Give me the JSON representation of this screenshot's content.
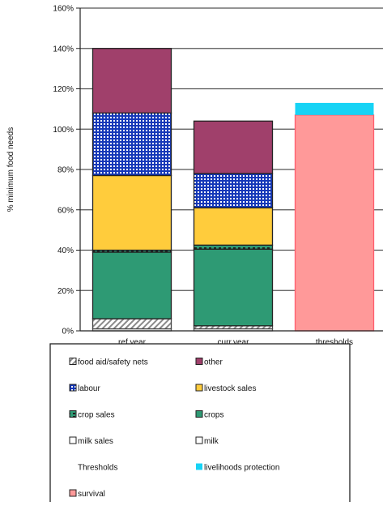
{
  "chart_data": {
    "type": "bar",
    "stacked": true,
    "ylabel": "% minimum food needs",
    "y_unit": "%",
    "ylim": [
      0,
      160
    ],
    "y_ticks": [
      0,
      20,
      40,
      60,
      80,
      100,
      120,
      140,
      160
    ],
    "grid": true,
    "categories": [
      "ref.year",
      "curr.year",
      "thresholds"
    ],
    "series": [
      {
        "name": "survival",
        "values": [
          0,
          0,
          107
        ],
        "color": "#ff9999",
        "stroke": "#ff5d6d",
        "pattern": "none"
      },
      {
        "name": "livelihoods protection",
        "values": [
          0,
          0,
          6
        ],
        "color": "#17d3f5",
        "stroke": "none",
        "pattern": "none"
      },
      {
        "name": "milk sales",
        "values": [
          1,
          1,
          0
        ],
        "color": "#ffffff",
        "stroke": "#555555",
        "pattern": "none"
      },
      {
        "name": "milk",
        "values": [
          0,
          0,
          0
        ],
        "color": "#ffffff",
        "stroke": "#555555",
        "pattern": "none"
      },
      {
        "name": "food aid/safety nets",
        "values": [
          5,
          1.5,
          0
        ],
        "color": "#ffffff",
        "stroke": "#444444",
        "pattern": "diag"
      },
      {
        "name": "crops",
        "values": [
          33,
          38,
          0
        ],
        "color": "#2e9a74",
        "stroke": "#222222",
        "pattern": "none"
      },
      {
        "name": "crop sales",
        "values": [
          1,
          2,
          0
        ],
        "color": "#2e9a74",
        "stroke": "#222222",
        "pattern": "dash"
      },
      {
        "name": "livestock sales",
        "values": [
          37,
          18.5,
          0
        ],
        "color": "#ffcc3c",
        "stroke": "#222222",
        "pattern": "none"
      },
      {
        "name": "labour",
        "values": [
          31,
          17,
          0
        ],
        "color": "#1538b8",
        "stroke": "#222222",
        "pattern": "grid"
      },
      {
        "name": "other",
        "values": [
          32,
          26,
          0
        ],
        "color": "#a0406b",
        "stroke": "#222222",
        "pattern": "none"
      }
    ],
    "legend": {
      "position": "bottom",
      "heading": "Thresholds",
      "rows": [
        [
          "food aid/safety nets",
          "other"
        ],
        [
          "labour",
          "livestock sales"
        ],
        [
          "crop sales",
          "crops"
        ],
        [
          "milk sales",
          "milk"
        ],
        [
          "",
          "livelihoods protection"
        ],
        [
          "survival",
          ""
        ]
      ]
    }
  }
}
